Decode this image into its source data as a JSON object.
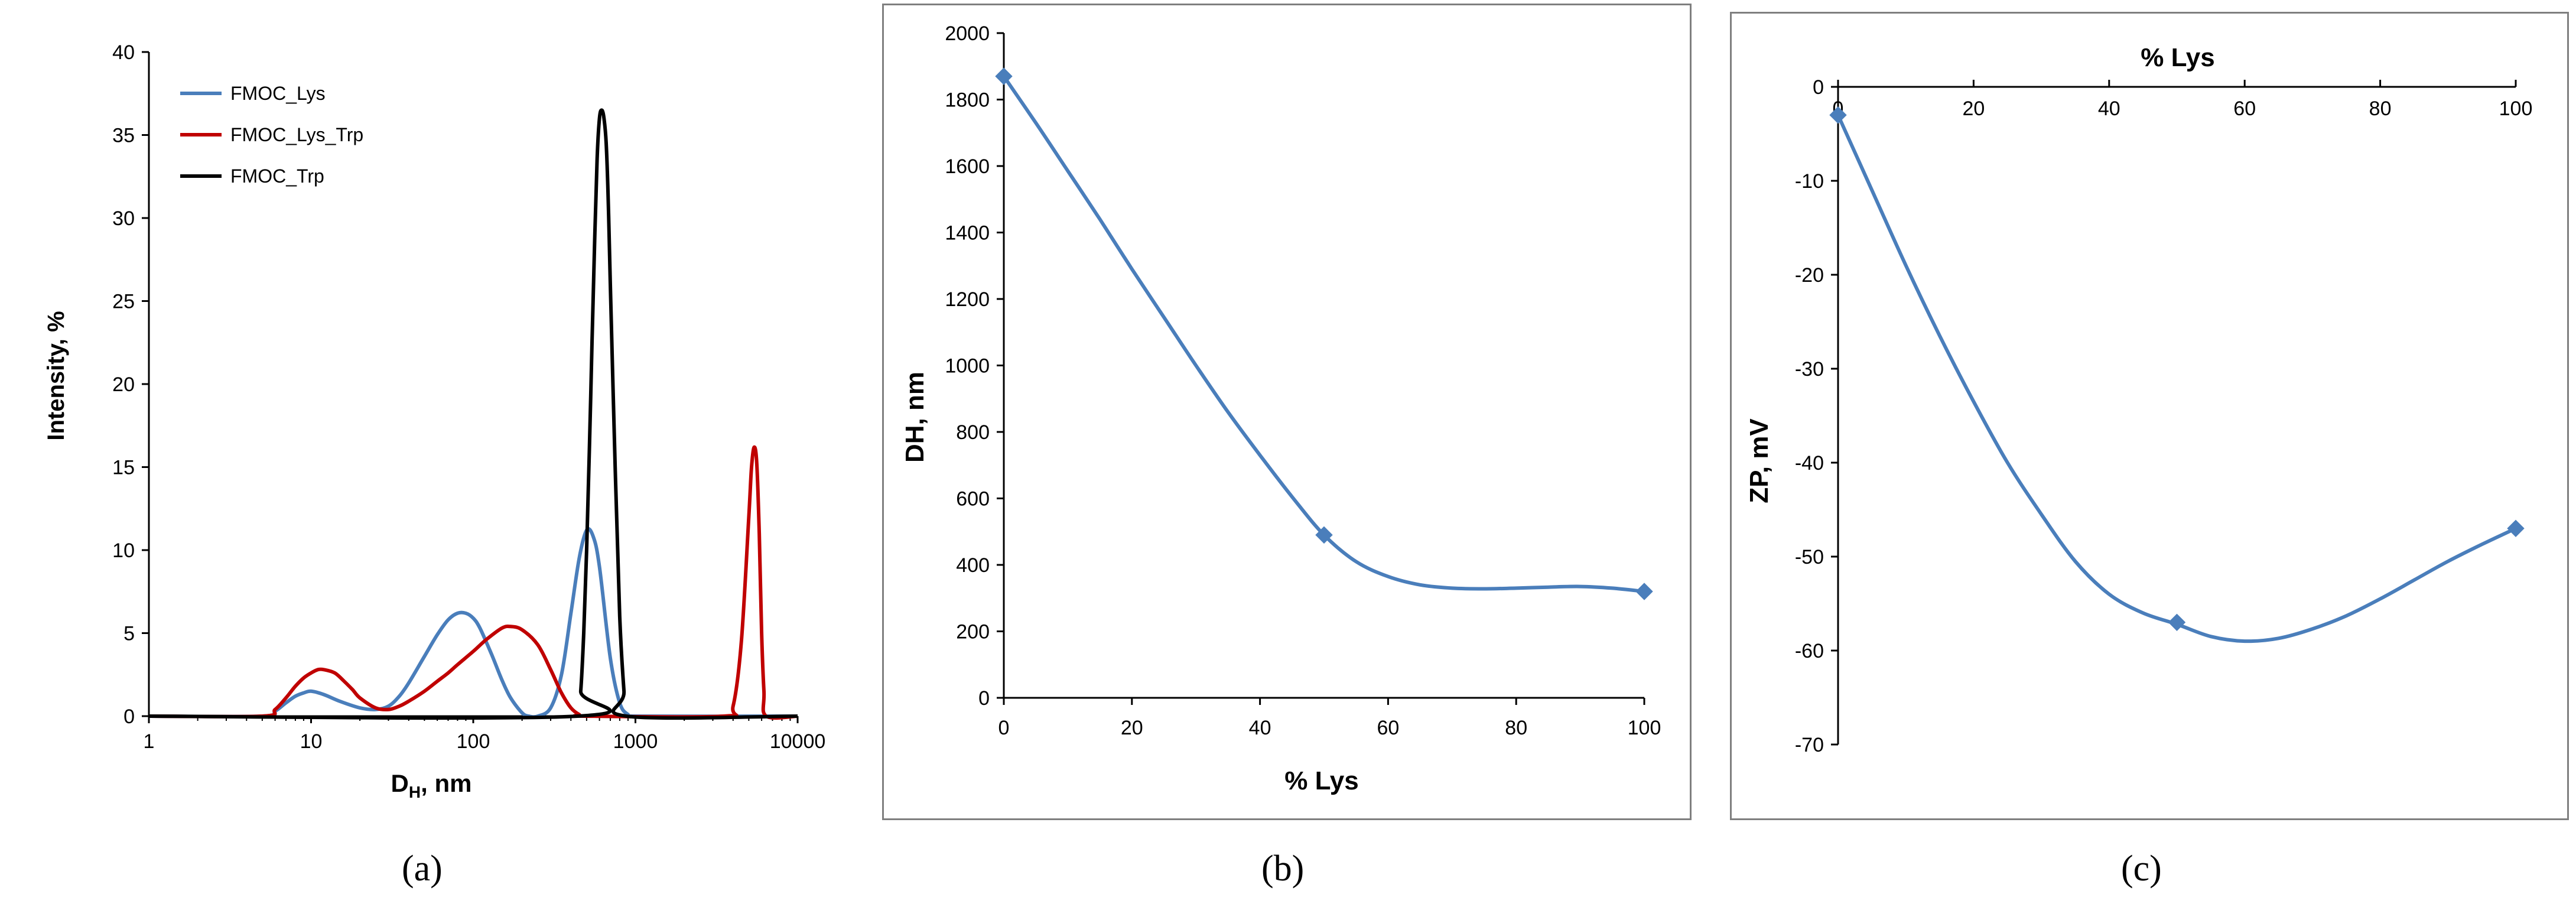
{
  "panel_labels": [
    "(a)",
    "(b)",
    "(c)"
  ],
  "colors": {
    "blue": "#4a7ebb",
    "red": "#c00000",
    "black": "#000000",
    "axis": "#000000",
    "frame": "#7f7f7f"
  },
  "chart_data": [
    {
      "type": "line",
      "xlabel_main": "D",
      "xlabel_sub": "H",
      "xlabel_tail": ", nm",
      "ylabel": "Intensity, %",
      "x_scale": "log",
      "xlim": [
        1,
        10000
      ],
      "ylim": [
        0,
        40
      ],
      "x_ticks": [
        "1",
        "10",
        "100",
        "1000",
        "10000"
      ],
      "y_ticks": [
        "0",
        "5",
        "10",
        "15",
        "20",
        "25",
        "30",
        "35",
        "40"
      ],
      "legend": "top-left",
      "series": [
        {
          "name": "FMOC_Lys",
          "color": "#4a7ebb",
          "x": [
            1,
            5,
            6,
            7,
            8,
            9,
            10,
            12,
            15,
            20,
            25,
            30,
            35,
            40,
            50,
            60,
            70,
            80,
            90,
            100,
            110,
            130,
            150,
            170,
            200,
            220,
            250,
            300,
            350,
            400,
            450,
            500,
            550,
            600,
            700,
            800,
            900,
            1000,
            10000
          ],
          "y": [
            0,
            0,
            0.3,
            0.8,
            1.2,
            1.4,
            1.5,
            1.3,
            0.9,
            0.5,
            0.4,
            0.6,
            1.2,
            2.0,
            3.6,
            4.9,
            5.8,
            6.2,
            6.2,
            5.9,
            5.3,
            3.7,
            2.2,
            1.1,
            0.2,
            0,
            0,
            0.5,
            2.5,
            6.2,
            9.5,
            11.2,
            10.8,
            9.0,
            3.5,
            0.8,
            0.1,
            0,
            0
          ]
        },
        {
          "name": "FMOC_Lys_Trp",
          "color": "#c00000",
          "x": [
            1,
            5,
            6,
            7,
            8,
            9,
            10,
            11,
            12,
            14,
            16,
            18,
            20,
            25,
            30,
            35,
            40,
            50,
            60,
            70,
            80,
            100,
            120,
            150,
            170,
            200,
            250,
            300,
            350,
            400,
            450,
            500,
            3500,
            4000,
            4500,
            5000,
            5200,
            5400,
            5600,
            5800,
            6000,
            6200,
            6400,
            10000
          ],
          "y": [
            0,
            0,
            0.4,
            1.1,
            1.8,
            2.3,
            2.6,
            2.8,
            2.8,
            2.6,
            2.1,
            1.6,
            1.1,
            0.5,
            0.4,
            0.6,
            0.9,
            1.5,
            2.1,
            2.6,
            3.1,
            3.9,
            4.6,
            5.3,
            5.4,
            5.2,
            4.3,
            2.8,
            1.4,
            0.5,
            0.1,
            0,
            0,
            0.6,
            4.5,
            12.0,
            15.0,
            16.2,
            15.2,
            11.0,
            5.0,
            1.5,
            0,
            0
          ]
        },
        {
          "name": "FMOC_Trp",
          "color": "#000000",
          "x": [
            1,
            440,
            460,
            480,
            500,
            520,
            540,
            560,
            580,
            600,
            620,
            640,
            660,
            680,
            700,
            750,
            800,
            850,
            880,
            10000
          ],
          "y": [
            0,
            0,
            1.5,
            5.0,
            10.0,
            16.0,
            22.5,
            28.5,
            33.5,
            36.0,
            36.5,
            36.0,
            34.5,
            31.0,
            26.0,
            15.0,
            6.0,
            1.5,
            0,
            0
          ]
        }
      ]
    },
    {
      "type": "line",
      "xlabel": "% Lys",
      "ylabel": "DH, nm",
      "xlim": [
        0,
        100
      ],
      "ylim": [
        0,
        2000
      ],
      "x_ticks": [
        "0",
        "20",
        "40",
        "60",
        "80",
        "100"
      ],
      "y_ticks": [
        "0",
        "200",
        "400",
        "600",
        "800",
        "1000",
        "1200",
        "1400",
        "1600",
        "1800",
        "2000"
      ],
      "series": [
        {
          "color": "#4a7ebb",
          "marker": "diamond",
          "x": [
            0,
            50,
            100
          ],
          "y": [
            1870,
            490,
            320
          ],
          "curve_x": [
            0,
            5,
            10,
            15,
            20,
            25,
            30,
            35,
            40,
            45,
            50,
            55,
            60,
            65,
            70,
            75,
            80,
            85,
            90,
            95,
            100
          ],
          "curve_y": [
            1870,
            1730,
            1585,
            1440,
            1290,
            1145,
            1000,
            860,
            730,
            605,
            490,
            410,
            365,
            340,
            330,
            328,
            330,
            333,
            335,
            330,
            320
          ]
        }
      ]
    },
    {
      "type": "line",
      "xlabel": "% Lys",
      "ylabel": "ZP, mV",
      "x_axis_position": "top",
      "xlim": [
        0,
        100
      ],
      "ylim": [
        -70,
        0
      ],
      "x_ticks": [
        "0",
        "20",
        "40",
        "60",
        "80",
        "100"
      ],
      "y_ticks": [
        "0",
        "-10",
        "-20",
        "-30",
        "-40",
        "-50",
        "-60",
        "-70"
      ],
      "series": [
        {
          "color": "#4a7ebb",
          "marker": "diamond",
          "x": [
            0,
            50,
            100
          ],
          "y": [
            -3,
            -57,
            -47
          ],
          "curve_x": [
            0,
            5,
            10,
            15,
            20,
            25,
            30,
            35,
            40,
            45,
            50,
            55,
            60,
            65,
            70,
            75,
            80,
            85,
            90,
            95,
            100
          ],
          "curve_y": [
            -3,
            -11,
            -19,
            -26.5,
            -33.5,
            -40,
            -45.5,
            -50.5,
            -54,
            -56,
            -57.2,
            -58.5,
            -59,
            -58.7,
            -57.7,
            -56.3,
            -54.5,
            -52.5,
            -50.5,
            -48.7,
            -47
          ]
        }
      ]
    }
  ]
}
